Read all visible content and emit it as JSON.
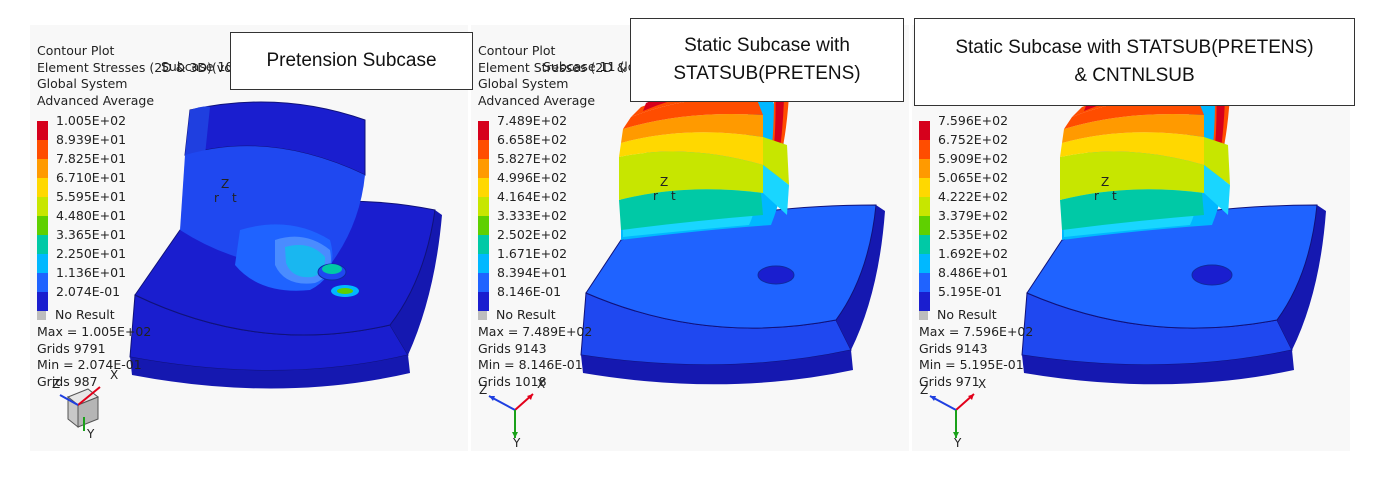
{
  "colors": {
    "background": "#f8f8f8",
    "contour": [
      "#d6001c",
      "#ff4d00",
      "#ff9a00",
      "#ffd800",
      "#c7e600",
      "#5fd000",
      "#00c9a6",
      "#00b8ff",
      "#1f63ff",
      "#1a1ecf"
    ],
    "no_result": "#bdbdbd"
  },
  "panels": [
    {
      "header": [
        "Contour Plot",
        "Element Stresses (2D & 3D)(vonM",
        "Global System",
        "Advanced Average"
      ],
      "subtitle": "Subcase 10",
      "callout": "Pretension Subcase",
      "legend": [
        "1.005E+02",
        "8.939E+01",
        "7.825E+01",
        "6.710E+01",
        "5.595E+01",
        "4.480E+01",
        "3.365E+01",
        "2.250E+01",
        "1.136E+01",
        "2.074E-01"
      ],
      "no_result": "No Result",
      "stats": [
        "Max = 1.005E+02",
        "Grids 9791",
        "Min = 2.074E-01",
        "Grids 987"
      ],
      "axes": {
        "x": "X",
        "y": "Y",
        "z": "Z"
      },
      "triad_icon": "view-cube-icon",
      "local_axes": {
        "z": "Z",
        "r": "r",
        "t": "t"
      }
    },
    {
      "header": [
        "Contour Plot",
        "Element Stresses (2D & 3D",
        "Global System",
        "Advanced Average"
      ],
      "subtitle": "Subcase 11 (lo",
      "callout": "Static Subcase with STATSUB(PRETENS)",
      "legend": [
        "7.489E+02",
        "6.658E+02",
        "5.827E+02",
        "4.996E+02",
        "4.164E+02",
        "3.333E+02",
        "2.502E+02",
        "1.671E+02",
        "8.394E+01",
        "8.146E-01"
      ],
      "no_result": "No Result",
      "stats": [
        "Max = 7.489E+02",
        "Grids 9143",
        "Min = 8.146E-01",
        "Grids 1018"
      ],
      "axes": {
        "x": "X",
        "y": "Y",
        "z": "Z"
      },
      "triad_icon": "axis-triad-icon",
      "local_axes": {
        "z": "Z",
        "r": "r",
        "t": "t"
      }
    },
    {
      "header": [],
      "subtitle": "",
      "callout": "Static Subcase with STATSUB(PRETENS) & CNTNLSUB",
      "legend": [
        "7.596E+02",
        "6.752E+02",
        "5.909E+02",
        "5.065E+02",
        "4.222E+02",
        "3.379E+02",
        "2.535E+02",
        "1.692E+02",
        "8.486E+01",
        "5.195E-01"
      ],
      "no_result": "No Result",
      "stats": [
        "Max = 7.596E+02",
        "Grids 9143",
        "Min = 5.195E-01",
        "Grids 971"
      ],
      "axes": {
        "x": "X",
        "y": "Y",
        "z": "Z"
      },
      "triad_icon": "axis-triad-icon",
      "local_axes": {
        "z": "Z",
        "r": "r",
        "t": "t"
      }
    }
  ]
}
